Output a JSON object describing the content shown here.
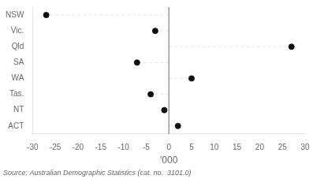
{
  "chart_data": {
    "type": "lollipop",
    "orientation": "horizontal",
    "categories": [
      "NSW",
      "Vic.",
      "Qld",
      "SA",
      "WA",
      "Tas.",
      "NT",
      "ACT"
    ],
    "values": [
      -27.0,
      -3.0,
      27.0,
      -7.0,
      5.0,
      -4.0,
      -1.0,
      2.0
    ],
    "xlim": [
      -30,
      30
    ],
    "xticks": [
      -30,
      -25,
      -20,
      -15,
      -10,
      -5,
      0,
      5,
      10,
      15,
      20,
      25,
      30
    ],
    "xlabel": "'000",
    "annotation": "Source: Australian Demographic Statistics (cat. no.  3101.0)",
    "color": "#111111",
    "line_style": "dashed",
    "marker": "circle",
    "grid": false
  }
}
